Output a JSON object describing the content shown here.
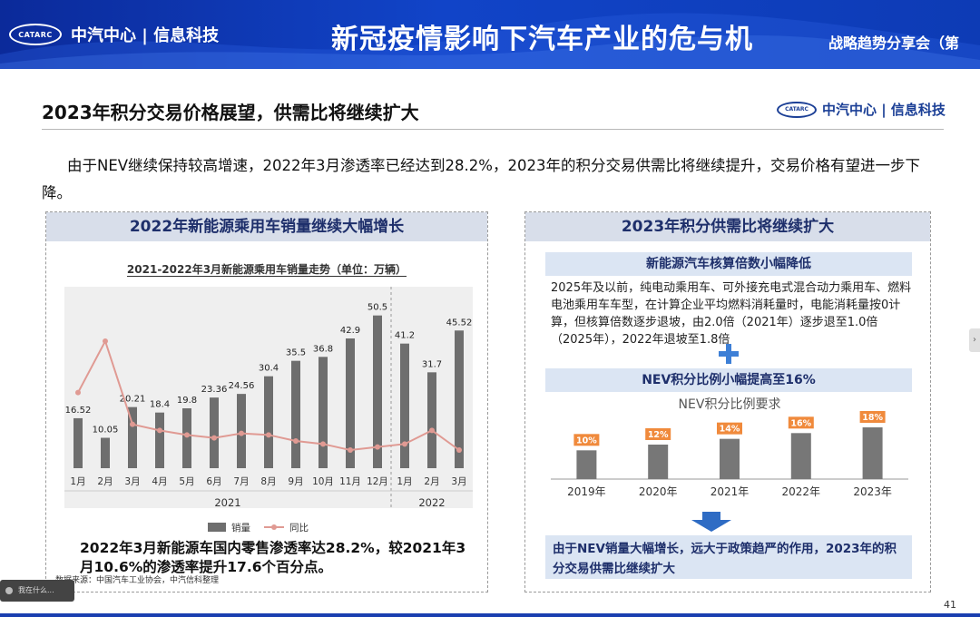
{
  "banner": {
    "logo_mark": "CATARC",
    "logo_text": "中汽中心 | 信息科技",
    "title": "新冠疫情影响下汽车产业的危与机",
    "subtitle": "战略趋势分享会（第"
  },
  "header": {
    "page_title": "2023年积分交易价格展望，供需比将继续扩大",
    "logo_mark": "CATARC",
    "logo_text": "中汽中心 | 信息科技"
  },
  "intro": "由于NEV继续保持较高增速，2022年3月渗透率已经达到28.2%，2023年的积分交易供需比将继续提升，交易价格有望进一步下降。",
  "left_panel": {
    "heading": "2022年新能源乘用车销量继续大幅增长",
    "note": "2022年3月新能源车国内零售渗透率达28.2%，较2021年3月10.6%的渗透率提升17.6个百分点。",
    "source": "数据来源：中国汽车工业协会，中汽信科整理"
  },
  "right_panel": {
    "heading": "2023年积分供需比将继续扩大",
    "sub1": "新能源汽车核算倍数小幅降低",
    "rule_text": "2025年及以前，纯电动乘用车、可外接充电式混合动力乘用车、燃料电池乘用车车型，在计算企业平均燃料消耗量时，电能消耗量按0计算，但核算倍数逐步退坡，由2.0倍（2021年）逐步退至1.0倍（2025年），2022年退坡至1.8倍",
    "sub2": "NEV积分比例小幅提高至16%",
    "conclusion": "由于NEV销量大幅增长，远大于政策趋严的作用，2023年的积分交易供需比继续扩大"
  },
  "page_number": "41",
  "taskbar_text": "我在什么...",
  "colors": {
    "banner": "#0d3bb5",
    "bar": "#6e6e6e",
    "line": "#e09a93",
    "nev_bar": "#777777",
    "nev_label": "#f08a3c",
    "accent": "#1e2f6b"
  },
  "chart_data": [
    {
      "type": "bar",
      "title": "2021-2022年3月新能源乘用车销量走势（单位：万辆）",
      "categories": [
        "1月",
        "2月",
        "3月",
        "4月",
        "5月",
        "6月",
        "7月",
        "8月",
        "9月",
        "10月",
        "11月",
        "12月",
        "1月",
        "2月",
        "3月"
      ],
      "year_groups": [
        {
          "label": "2021",
          "count": 12
        },
        {
          "label": "2022",
          "count": 3
        }
      ],
      "series": [
        {
          "name": "销量",
          "kind": "bar",
          "values": [
            16.52,
            10.05,
            20.21,
            18.4,
            19.8,
            23.36,
            24.56,
            30.4,
            35.5,
            36.8,
            42.9,
            50.5,
            41.2,
            31.7,
            45.52
          ]
        },
        {
          "name": "同比",
          "kind": "line",
          "values": [
            25,
            42,
            14.5,
            12.5,
            11,
            10,
            11.5,
            11,
            9,
            8,
            6,
            7,
            8,
            12.5,
            6
          ]
        }
      ],
      "value_labels": [
        "16.52",
        "10.05",
        "20.21",
        "18.4",
        "19.8",
        "23.36",
        "24.56",
        "30.4",
        "35.5",
        "36.8",
        "42.9",
        "50.5",
        "41.2",
        "31.7",
        "45.52"
      ],
      "ylim": [
        0,
        60
      ]
    },
    {
      "type": "bar",
      "title": "NEV积分比例要求",
      "categories": [
        "2019年",
        "2020年",
        "2021年",
        "2022年",
        "2023年"
      ],
      "values": [
        10,
        12,
        14,
        16,
        18
      ],
      "value_labels": [
        "10%",
        "12%",
        "14%",
        "16%",
        "18%"
      ],
      "ylim": [
        0,
        25
      ]
    }
  ]
}
